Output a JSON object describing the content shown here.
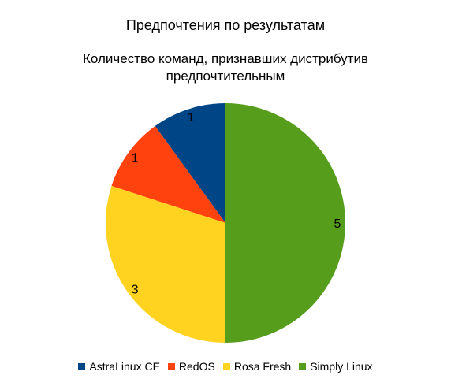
{
  "chart_data": {
    "type": "pie",
    "title": "Предпочтения по результатам",
    "subtitle": "Количество команд, признавших дистрибутив предпочтительным",
    "categories": [
      "AstraLinux CE",
      "RedOS",
      "Rosa Fresh",
      "Simply Linux"
    ],
    "values": [
      1,
      1,
      3,
      5
    ],
    "colors": [
      "#004586",
      "#ff420e",
      "#ffd320",
      "#579d1c"
    ],
    "data_labels": [
      "1",
      "1",
      "3",
      "5"
    ],
    "legend_position": "bottom",
    "start": "12 o'clock, counterclockwise"
  }
}
